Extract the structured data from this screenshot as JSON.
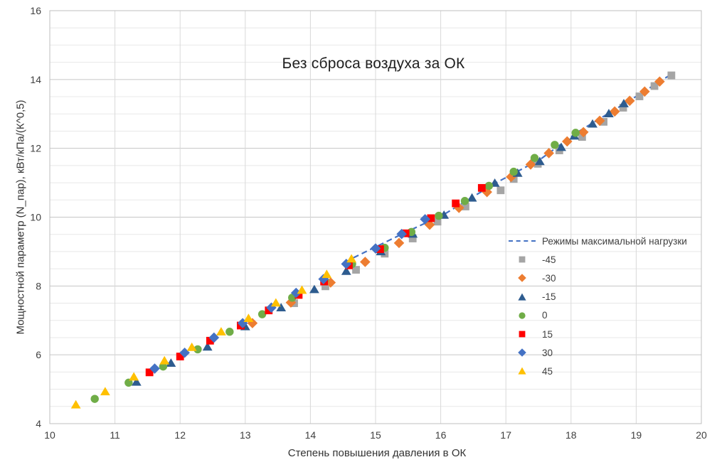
{
  "chart_data": {
    "type": "scatter",
    "title": "Без сброса воздуха за ОК",
    "xlabel": "Степень повышения давления в ОК",
    "ylabel": "Мощностной параметр (N_пар), кВт/кПа/(К^0,5)",
    "xlim": [
      10,
      20
    ],
    "ylim": [
      4,
      16
    ],
    "x_ticks": [
      10,
      11,
      12,
      13,
      14,
      15,
      16,
      17,
      18,
      19,
      20
    ],
    "y_ticks": [
      4,
      6,
      8,
      10,
      12,
      14,
      16
    ],
    "x_grid_step": 1,
    "y_major_grid_step": 2,
    "y_minor_grid_step": 0.5,
    "grid": true,
    "legend_position": "right-middle-overlay",
    "colors": {
      "grid_major": "#c6c6c6",
      "grid_minor": "#e8e8e8",
      "grid_vertical": "#d9d9d9",
      "axis_border": "#bfbfbf",
      "tick_text": "#404040",
      "trend_line": "#4472C4"
    },
    "trend_line": {
      "name": "Режимы максимальной нагрузки",
      "style": "dashed",
      "color": "#4472C4",
      "points": [
        [
          14.66,
          8.82
        ],
        [
          15.45,
          9.55
        ],
        [
          16.05,
          10.08
        ],
        [
          16.85,
          11.0
        ],
        [
          17.52,
          11.67
        ],
        [
          18.1,
          12.47
        ],
        [
          18.85,
          13.33
        ],
        [
          19.52,
          14.13
        ]
      ]
    },
    "series": [
      {
        "name": "-45",
        "marker": "square",
        "color": "#A5A5A5",
        "points": [
          [
            13.75,
            7.5
          ],
          [
            14.23,
            7.99
          ],
          [
            14.7,
            8.47
          ],
          [
            15.14,
            8.94
          ],
          [
            15.57,
            9.38
          ],
          [
            15.95,
            9.87
          ],
          [
            16.38,
            10.31
          ],
          [
            16.92,
            10.78
          ],
          [
            17.12,
            11.11
          ],
          [
            17.49,
            11.55
          ],
          [
            17.82,
            11.94
          ],
          [
            18.17,
            12.33
          ],
          [
            18.5,
            12.77
          ],
          [
            18.8,
            13.18
          ],
          [
            19.05,
            13.51
          ],
          [
            19.28,
            13.81
          ],
          [
            19.54,
            14.12
          ]
        ]
      },
      {
        "name": "-30",
        "marker": "diamond",
        "color": "#ED7D31",
        "points": [
          [
            13.11,
            6.92
          ],
          [
            13.7,
            7.52
          ],
          [
            14.31,
            8.1
          ],
          [
            14.84,
            8.7
          ],
          [
            15.36,
            9.25
          ],
          [
            15.83,
            9.78
          ],
          [
            16.28,
            10.27
          ],
          [
            16.71,
            10.73
          ],
          [
            17.08,
            11.17
          ],
          [
            17.38,
            11.53
          ],
          [
            17.66,
            11.86
          ],
          [
            17.94,
            12.2
          ],
          [
            18.19,
            12.47
          ],
          [
            18.44,
            12.8
          ],
          [
            18.67,
            13.07
          ],
          [
            18.9,
            13.38
          ],
          [
            19.13,
            13.65
          ],
          [
            19.36,
            13.94
          ]
        ]
      },
      {
        "name": "-15",
        "marker": "triangle",
        "color": "#2E5C8F",
        "points": [
          [
            11.33,
            5.21
          ],
          [
            11.86,
            5.76
          ],
          [
            12.42,
            6.23
          ],
          [
            13.0,
            6.82
          ],
          [
            13.55,
            7.37
          ],
          [
            14.06,
            7.9
          ],
          [
            14.55,
            8.43
          ],
          [
            15.08,
            9.0
          ],
          [
            15.57,
            9.51
          ],
          [
            16.05,
            10.06
          ],
          [
            16.48,
            10.56
          ],
          [
            16.83,
            10.99
          ],
          [
            17.18,
            11.28
          ],
          [
            17.52,
            11.62
          ],
          [
            17.85,
            12.03
          ],
          [
            18.05,
            12.36
          ],
          [
            18.33,
            12.71
          ],
          [
            18.58,
            13.01
          ],
          [
            18.81,
            13.3
          ]
        ]
      },
      {
        "name": "0",
        "marker": "circle",
        "color": "#70AD47",
        "points": [
          [
            10.69,
            4.72
          ],
          [
            11.21,
            5.19
          ],
          [
            11.74,
            5.66
          ],
          [
            12.27,
            6.16
          ],
          [
            12.76,
            6.67
          ],
          [
            13.26,
            7.18
          ],
          [
            13.72,
            7.66
          ],
          [
            14.22,
            8.17
          ],
          [
            14.64,
            8.64
          ],
          [
            15.14,
            9.11
          ],
          [
            15.55,
            9.57
          ],
          [
            15.97,
            10.04
          ],
          [
            16.37,
            10.47
          ],
          [
            16.74,
            10.91
          ],
          [
            17.12,
            11.32
          ],
          [
            17.44,
            11.72
          ],
          [
            17.75,
            12.1
          ],
          [
            18.07,
            12.45
          ]
        ]
      },
      {
        "name": "15",
        "marker": "square",
        "color": "#FF0000",
        "points": [
          [
            11.53,
            5.49
          ],
          [
            12.0,
            5.95
          ],
          [
            12.46,
            6.41
          ],
          [
            12.93,
            6.85
          ],
          [
            13.36,
            7.29
          ],
          [
            13.82,
            7.74
          ],
          [
            14.21,
            8.13
          ],
          [
            14.59,
            8.6
          ],
          [
            15.07,
            9.07
          ],
          [
            15.46,
            9.53
          ],
          [
            15.85,
            9.97
          ],
          [
            16.23,
            10.4
          ],
          [
            16.63,
            10.85
          ]
        ]
      },
      {
        "name": "30",
        "marker": "diamond",
        "color": "#4472C4",
        "points": [
          [
            11.61,
            5.6
          ],
          [
            12.07,
            6.06
          ],
          [
            12.52,
            6.5
          ],
          [
            12.96,
            6.92
          ],
          [
            13.4,
            7.37
          ],
          [
            13.78,
            7.8
          ],
          [
            14.2,
            8.2
          ],
          [
            14.55,
            8.64
          ],
          [
            15.0,
            9.09
          ],
          [
            15.4,
            9.51
          ],
          [
            15.76,
            9.94
          ]
        ]
      },
      {
        "name": "45",
        "marker": "triangle",
        "color": "#FFC000",
        "points": [
          [
            10.4,
            4.55
          ],
          [
            10.85,
            4.93
          ],
          [
            11.29,
            5.36
          ],
          [
            11.76,
            5.83
          ],
          [
            12.18,
            6.22
          ],
          [
            12.63,
            6.67
          ],
          [
            13.05,
            7.06
          ],
          [
            13.47,
            7.51
          ],
          [
            13.87,
            7.88
          ],
          [
            14.25,
            8.34
          ],
          [
            14.63,
            8.79
          ]
        ]
      }
    ]
  }
}
